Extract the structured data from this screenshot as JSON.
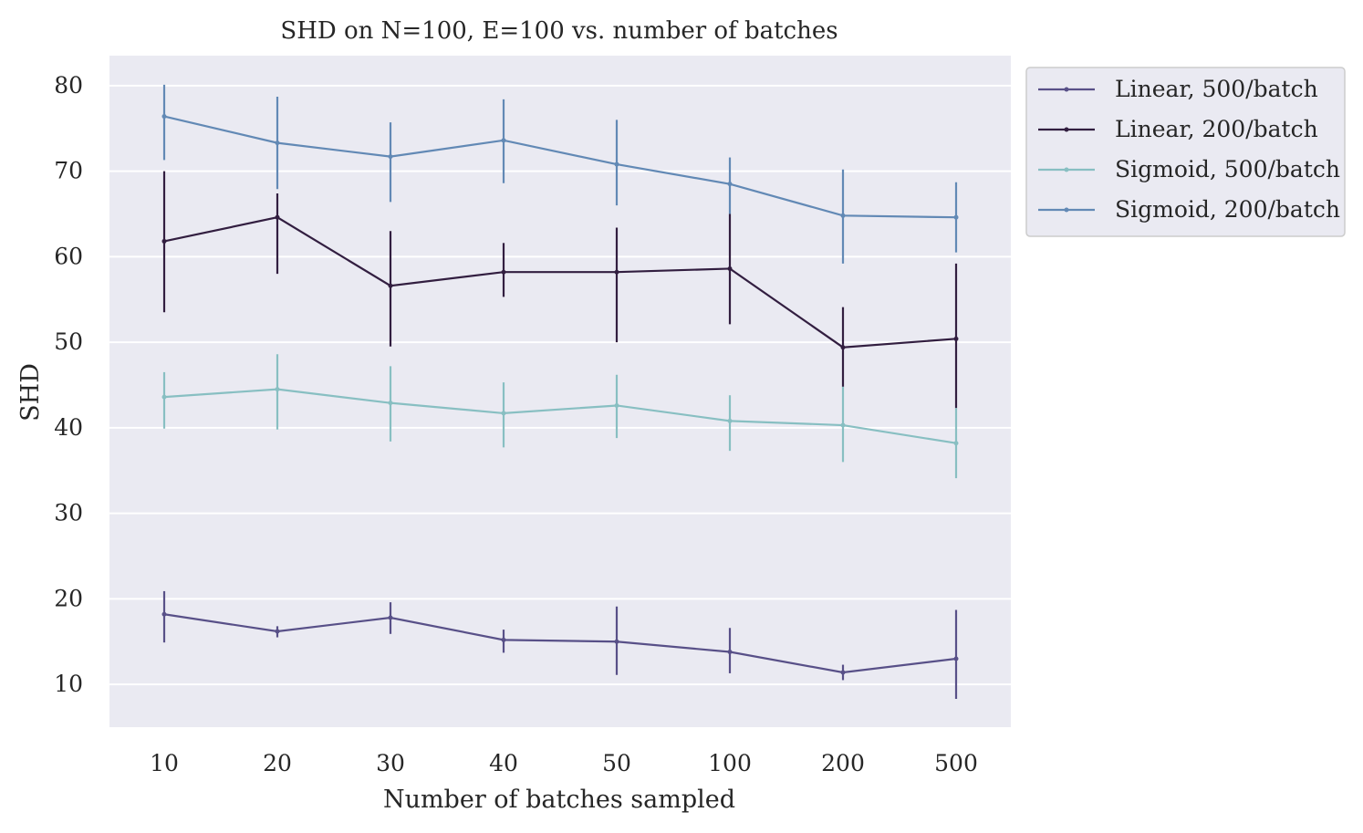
{
  "chart_data": {
    "type": "line",
    "title": "SHD on N=100, E=100 vs. number of batches",
    "xlabel": "Number of batches sampled",
    "ylabel": "SHD",
    "categories": [
      "10",
      "20",
      "30",
      "40",
      "50",
      "100",
      "200",
      "500"
    ],
    "ylim": [
      5,
      83.5
    ],
    "yticks": [
      10,
      20,
      30,
      40,
      50,
      60,
      70,
      80
    ],
    "grid": true,
    "background": "#eaeaf2",
    "grid_color": "#ffffff",
    "legend_position": "outside-upper-right",
    "series": [
      {
        "name": "Linear, 500/batch",
        "color": "#585088",
        "values": [
          18.2,
          16.2,
          17.8,
          15.2,
          15.0,
          13.8,
          11.4,
          13.0
        ],
        "err_low": [
          14.9,
          15.5,
          15.9,
          13.7,
          11.1,
          11.3,
          10.5,
          8.3
        ],
        "err_high": [
          20.9,
          16.8,
          19.6,
          16.4,
          19.1,
          16.6,
          12.3,
          18.7
        ]
      },
      {
        "name": "Linear, 200/batch",
        "color": "#321e40",
        "values": [
          61.8,
          64.6,
          56.6,
          58.2,
          58.2,
          58.6,
          49.4,
          50.4
        ],
        "err_low": [
          53.5,
          58.0,
          49.5,
          55.3,
          50.0,
          52.1,
          44.8,
          42.3
        ],
        "err_high": [
          70.0,
          67.4,
          63.0,
          61.6,
          63.4,
          65.0,
          54.1,
          59.2
        ]
      },
      {
        "name": "Sigmoid, 500/batch",
        "color": "#88bfc2",
        "values": [
          43.6,
          44.5,
          42.9,
          41.7,
          42.6,
          40.8,
          40.3,
          38.2
        ],
        "err_low": [
          39.9,
          39.8,
          38.4,
          37.7,
          38.8,
          37.3,
          36.0,
          34.1
        ],
        "err_high": [
          46.5,
          48.6,
          47.2,
          45.3,
          46.2,
          43.8,
          44.8,
          42.3
        ]
      },
      {
        "name": "Sigmoid, 200/batch",
        "color": "#6289b5",
        "values": [
          76.4,
          73.3,
          71.7,
          73.6,
          70.8,
          68.5,
          64.8,
          64.6
        ],
        "err_low": [
          71.3,
          67.9,
          66.4,
          68.6,
          66.0,
          65.0,
          59.2,
          60.5
        ],
        "err_high": [
          80.1,
          78.7,
          75.7,
          78.4,
          76.0,
          71.6,
          70.2,
          68.7
        ]
      }
    ]
  }
}
